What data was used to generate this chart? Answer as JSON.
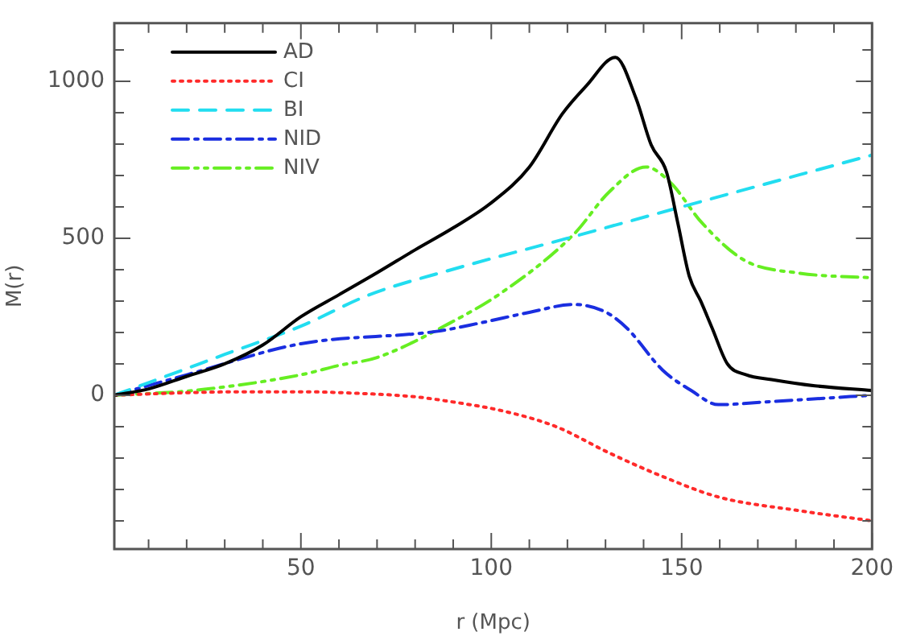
{
  "chart_data": {
    "type": "line",
    "xlabel": "r (Mpc)",
    "ylabel": "M(r)",
    "xlim": [
      1,
      200
    ],
    "ylim": [
      -490,
      1185
    ],
    "xticks": [
      {
        "value": 10,
        "label": null
      },
      {
        "value": 20,
        "label": null
      },
      {
        "value": 30,
        "label": null
      },
      {
        "value": 40,
        "label": null
      },
      50,
      {
        "value": 60,
        "label": null
      },
      {
        "value": 70,
        "label": null
      },
      {
        "value": 80,
        "label": null
      },
      {
        "value": 90,
        "label": null
      },
      100,
      {
        "value": 110,
        "label": null
      },
      {
        "value": 120,
        "label": null
      },
      {
        "value": 130,
        "label": null
      },
      {
        "value": 140,
        "label": null
      },
      150,
      {
        "value": 160,
        "label": null
      },
      {
        "value": 170,
        "label": null
      },
      {
        "value": 180,
        "label": null
      },
      {
        "value": 190,
        "label": null
      },
      200
    ],
    "yticks": [
      {
        "value": -400,
        "label": null
      },
      {
        "value": -300,
        "label": null
      },
      {
        "value": -200,
        "label": null
      },
      {
        "value": -100,
        "label": null
      },
      0,
      {
        "value": 100,
        "label": null
      },
      {
        "value": 200,
        "label": null
      },
      {
        "value": 300,
        "label": null
      },
      {
        "value": 400,
        "label": null
      },
      500,
      {
        "value": 600,
        "label": null
      },
      {
        "value": 700,
        "label": null
      },
      {
        "value": 800,
        "label": null
      },
      {
        "value": 900,
        "label": null
      },
      1000,
      {
        "value": 1100,
        "label": null
      }
    ],
    "grid": false,
    "legend": "top left",
    "marker": "none",
    "series": [
      {
        "name": "AD",
        "color": "#000000",
        "line_style": "solid",
        "x": [
          1,
          10,
          20,
          30,
          40,
          50,
          60,
          70,
          80,
          90,
          100,
          110,
          118.7,
          125,
          132.6,
          138,
          142,
          146,
          149,
          152,
          155,
          158,
          162,
          167,
          173.6,
          185,
          200
        ],
        "values": [
          0,
          20,
          60,
          100,
          160,
          250,
          320,
          390,
          463,
          533,
          613,
          727,
          897,
          986,
          1076,
          946,
          797,
          712,
          548,
          379,
          300,
          214,
          100,
          65,
          50,
          30,
          15
        ]
      },
      {
        "name": "CI",
        "color": "#ff2a2a",
        "line_style": "dotted",
        "x": [
          1,
          20,
          35,
          50,
          65,
          80,
          88,
          103,
          117,
          131,
          145,
          159.6,
          181,
          200
        ],
        "values": [
          0,
          8,
          11,
          11,
          6,
          -5,
          -18,
          -50,
          -100,
          -184,
          -259,
          -324,
          -368,
          -400
        ]
      },
      {
        "name": "BI",
        "color": "#22ddf0",
        "line_style": "dashed",
        "x": [
          1,
          10,
          30,
          50,
          68,
          89,
          120,
          150,
          200
        ],
        "values": [
          0,
          40,
          130,
          220,
          320,
          398,
          500,
          600,
          765
        ]
      },
      {
        "name": "NID",
        "color": "#1a2ee0",
        "line_style": "dashdot",
        "x": [
          1,
          20,
          50,
          86,
          97,
          110,
          121.7,
          130,
          135.6,
          145,
          152.5,
          159.6,
          173.6,
          200
        ],
        "values": [
          0,
          65,
          164,
          204,
          230,
          264,
          289,
          265,
          214,
          80,
          15,
          -30,
          -20,
          0
        ]
      },
      {
        "name": "NIV",
        "color": "#66ee22",
        "line_style": "dashdotdot",
        "x": [
          1,
          21.7,
          50,
          60,
          70,
          89,
          103,
          121.7,
          131,
          140.6,
          147,
          155.4,
          166.6,
          180.8,
          200
        ],
        "values": [
          0,
          15,
          65,
          95,
          120,
          229,
          329,
          513,
          648,
          727,
          678,
          548,
          429,
          389,
          374
        ]
      }
    ]
  }
}
